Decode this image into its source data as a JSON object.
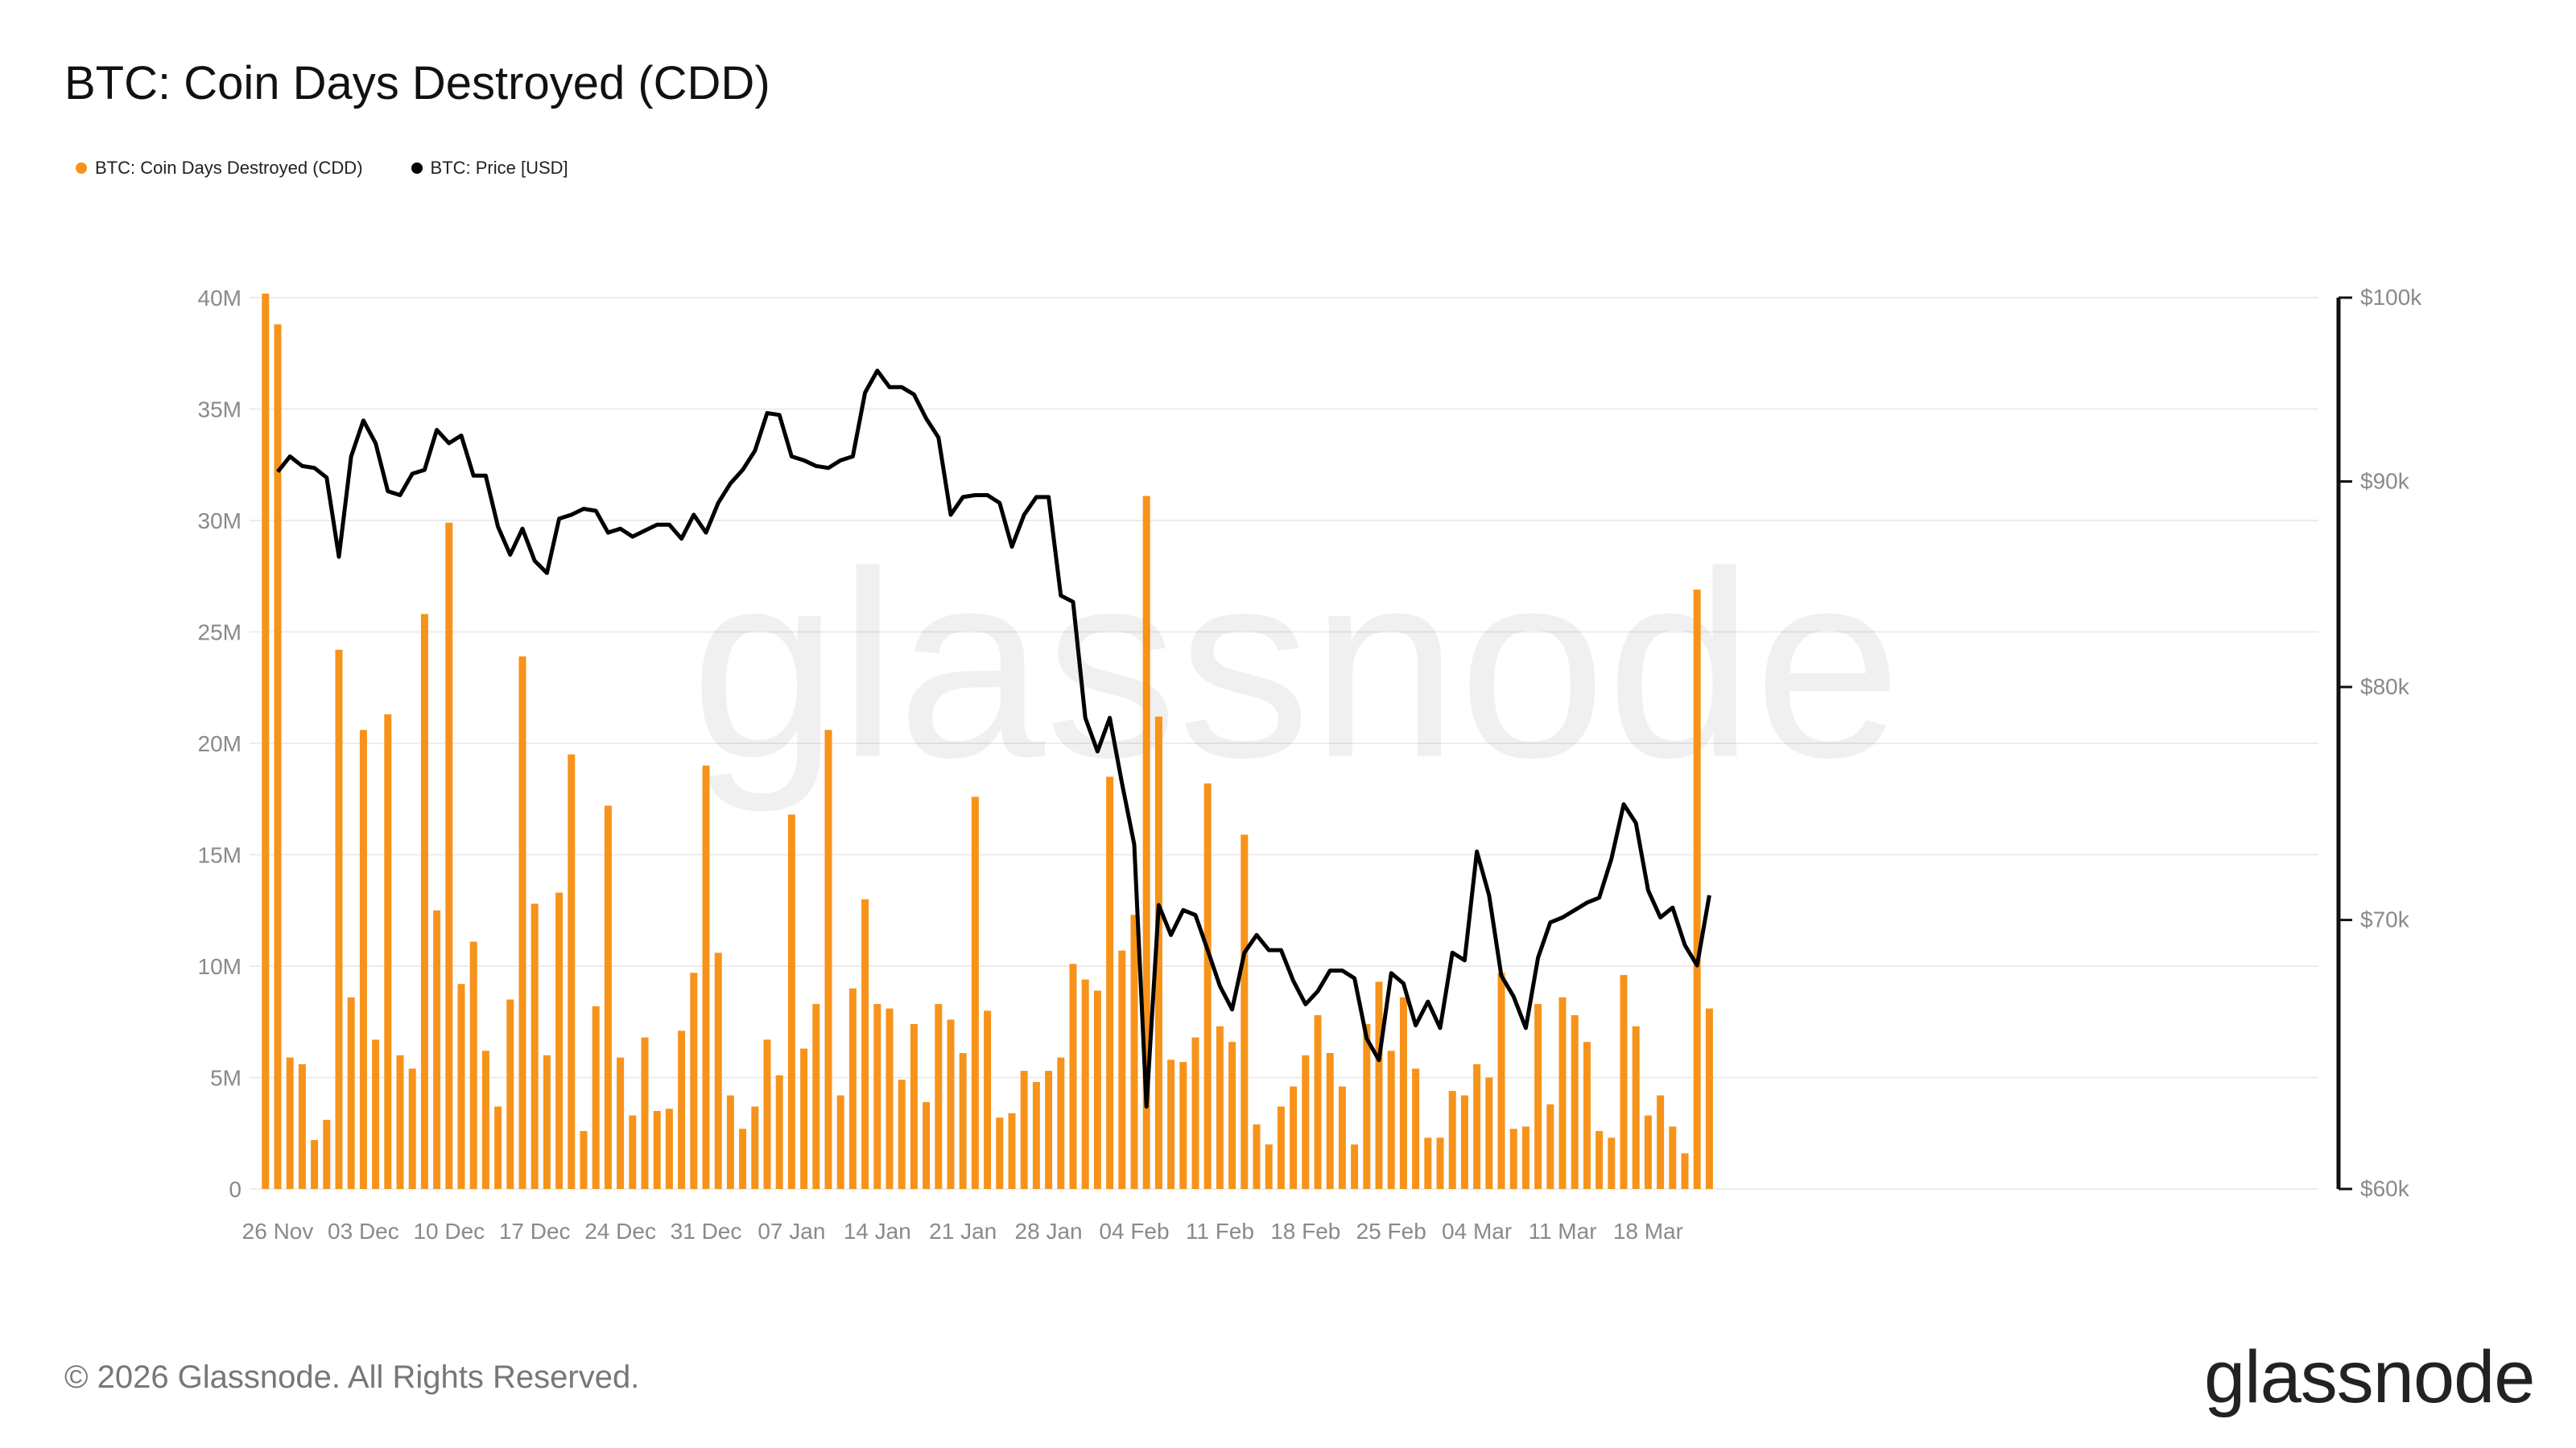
{
  "title": "BTC: Coin Days Destroyed (CDD)",
  "legend": [
    {
      "label": "BTC: Coin Days Destroyed (CDD)",
      "color": "#f7931a"
    },
    {
      "label": "BTC: Price [USD]",
      "color": "#000000"
    }
  ],
  "watermark": "glassnode",
  "footer": "© 2026 Glassnode. All Rights Reserved.",
  "brand": "glassnode",
  "chart_data": {
    "type": "bar",
    "x_axis_labels": [
      "26 Nov",
      "03 Dec",
      "10 Dec",
      "17 Dec",
      "24 Dec",
      "31 Dec",
      "07 Jan",
      "14 Jan",
      "21 Jan",
      "28 Jan",
      "04 Feb",
      "11 Feb",
      "18 Feb",
      "25 Feb",
      "04 Mar",
      "11 Mar",
      "18 Mar"
    ],
    "y_left": {
      "ticks": [
        "0",
        "5M",
        "10M",
        "15M",
        "20M",
        "25M",
        "30M",
        "35M",
        "40M"
      ],
      "range": [
        0,
        40000000
      ]
    },
    "y_right": {
      "ticks": [
        "$60k",
        "$70k",
        "$80k",
        "$90k",
        "$100k"
      ],
      "range": [
        60000,
        100000
      ],
      "scale": "log"
    },
    "grid": true,
    "series": [
      {
        "name": "BTC: Coin Days Destroyed (CDD)",
        "type": "bar",
        "color": "#f7931a",
        "start": "2025-11-25",
        "values": [
          41000000,
          38800000,
          5900000,
          5600000,
          2200000,
          3100000,
          24200000,
          8600000,
          20600000,
          6700000,
          21300000,
          6000000,
          5400000,
          25800000,
          12500000,
          29900000,
          9200000,
          11100000,
          6200000,
          3700000,
          8500000,
          23900000,
          12800000,
          6000000,
          13300000,
          19500000,
          2600000,
          8200000,
          17200000,
          5900000,
          3300000,
          6800000,
          3500000,
          3600000,
          7100000,
          9700000,
          19000000,
          10600000,
          4200000,
          2700000,
          3700000,
          6700000,
          5100000,
          16800000,
          6300000,
          8300000,
          20600000,
          4200000,
          9000000,
          13000000,
          8300000,
          8100000,
          4900000,
          7400000,
          3900000,
          8300000,
          7600000,
          6100000,
          17600000,
          8000000,
          3200000,
          3400000,
          5300000,
          4800000,
          5300000,
          5900000,
          10100000,
          9400000,
          8900000,
          18500000,
          10700000,
          12300000,
          31100000,
          21200000,
          5800000,
          5700000,
          6800000,
          18200000,
          7300000,
          6600000,
          15900000,
          2900000,
          2000000,
          3700000,
          4600000,
          6000000,
          7800000,
          6100000,
          4600000,
          2000000,
          7400000,
          9300000,
          6200000,
          8600000,
          5400000,
          2300000,
          2300000,
          4400000,
          4200000,
          5600000,
          5000000,
          9700000,
          2700000,
          2800000,
          8300000,
          3800000,
          8600000,
          7800000,
          6600000,
          2600000,
          2300000,
          9600000,
          7300000,
          3300000,
          4200000,
          2800000,
          1600000,
          26900000,
          8100000
        ]
      },
      {
        "name": "BTC: Price [USD]",
        "type": "line",
        "color": "#000000",
        "start": "2025-11-26",
        "values": [
          90500,
          91300,
          90800,
          90700,
          90200,
          86200,
          91300,
          93200,
          92000,
          89500,
          89300,
          90400,
          90600,
          92700,
          92000,
          92400,
          90300,
          90300,
          87700,
          86300,
          87600,
          86000,
          85400,
          88100,
          88300,
          88600,
          88500,
          87400,
          87600,
          87200,
          87500,
          87800,
          87800,
          87100,
          88300,
          87400,
          88900,
          89900,
          90600,
          91600,
          93600,
          93500,
          91300,
          91100,
          90800,
          90700,
          91100,
          91300,
          94700,
          95900,
          95000,
          95000,
          94600,
          93300,
          92300,
          88300,
          89200,
          89300,
          89300,
          88900,
          86700,
          88300,
          89200,
          89200,
          84300,
          84000,
          78600,
          77100,
          78600,
          75700,
          73100,
          62900,
          70600,
          69400,
          70400,
          70200,
          68800,
          67400,
          66500,
          68700,
          69400,
          68800,
          68800,
          67600,
          66700,
          67200,
          68000,
          68000,
          67700,
          65400,
          64600,
          67900,
          67500,
          65900,
          66800,
          65800,
          68700,
          68400,
          72800,
          71000,
          67800,
          67000,
          65800,
          68500,
          69900,
          70100,
          70400,
          70700,
          70900,
          72500,
          74800,
          74000,
          71200,
          70100,
          70500,
          69000,
          68200,
          71000
        ]
      }
    ]
  }
}
